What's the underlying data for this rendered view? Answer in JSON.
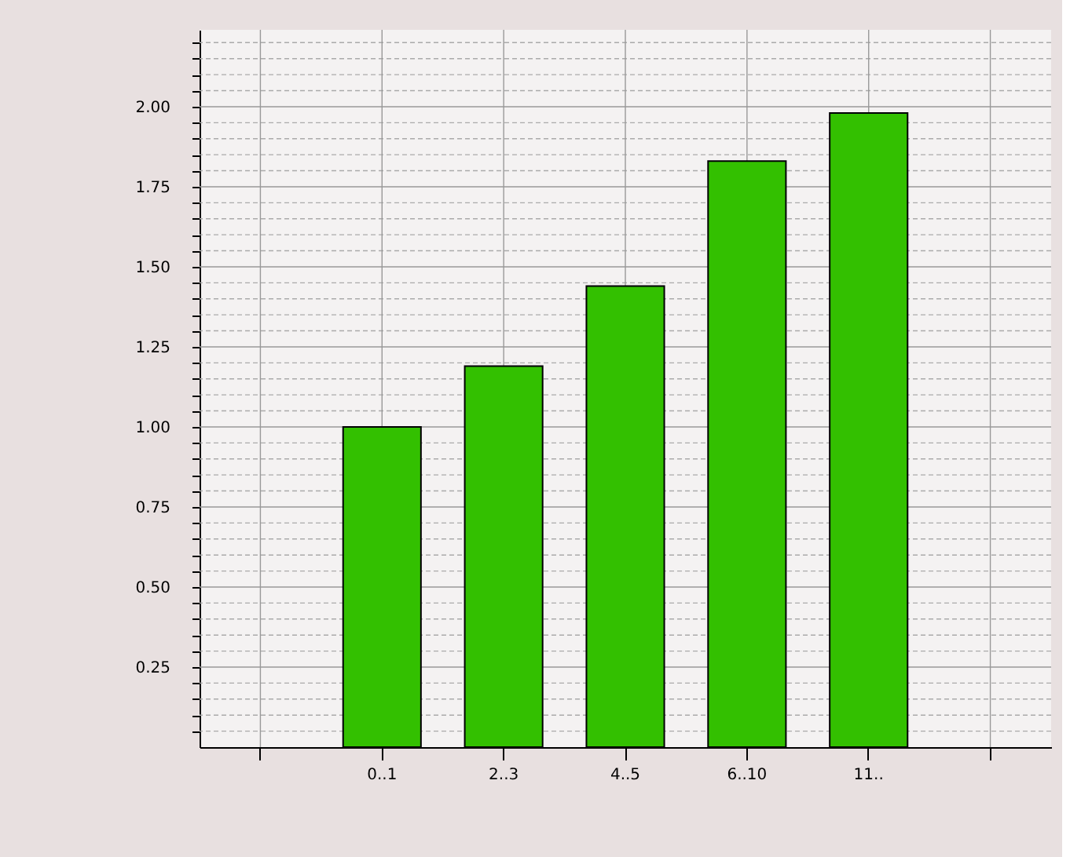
{
  "chart_data": {
    "type": "bar",
    "categories": [
      null,
      "0..1",
      "2..3",
      "4..5",
      "6..10",
      "11..",
      null
    ],
    "values": [
      null,
      1.0,
      1.19,
      1.44,
      1.83,
      1.98,
      null
    ],
    "color": "#33c000",
    "ylim": [
      0,
      2.24
    ],
    "yticks": [
      {
        "value": 0.05,
        "label": null
      },
      {
        "value": 0.1,
        "label": null
      },
      {
        "value": 0.15,
        "label": null
      },
      {
        "value": 0.2,
        "label": null
      },
      {
        "value": 0.25,
        "label": "0.25"
      },
      {
        "value": 0.3,
        "label": null
      },
      {
        "value": 0.35,
        "label": null
      },
      {
        "value": 0.4,
        "label": null
      },
      {
        "value": 0.45,
        "label": null
      },
      {
        "value": 0.5,
        "label": "0.50"
      },
      {
        "value": 0.55,
        "label": null
      },
      {
        "value": 0.6,
        "label": null
      },
      {
        "value": 0.65,
        "label": null
      },
      {
        "value": 0.7,
        "label": null
      },
      {
        "value": 0.75,
        "label": "0.75"
      },
      {
        "value": 0.8,
        "label": null
      },
      {
        "value": 0.85,
        "label": null
      },
      {
        "value": 0.9,
        "label": null
      },
      {
        "value": 0.95,
        "label": null
      },
      {
        "value": 1,
        "label": "1.00"
      },
      {
        "value": 1.05,
        "label": null
      },
      {
        "value": 1.1,
        "label": null
      },
      {
        "value": 1.15,
        "label": null
      },
      {
        "value": 1.2,
        "label": null
      },
      {
        "value": 1.25,
        "label": "1.25"
      },
      {
        "value": 1.3,
        "label": null
      },
      {
        "value": 1.35,
        "label": null
      },
      {
        "value": 1.4,
        "label": null
      },
      {
        "value": 1.45,
        "label": null
      },
      {
        "value": 1.5,
        "label": "1.50"
      },
      {
        "value": 1.55,
        "label": null
      },
      {
        "value": 1.6,
        "label": null
      },
      {
        "value": 1.65,
        "label": null
      },
      {
        "value": 1.7,
        "label": null
      },
      {
        "value": 1.75,
        "label": "1.75"
      },
      {
        "value": 1.8,
        "label": null
      },
      {
        "value": 1.85,
        "label": null
      },
      {
        "value": 1.9,
        "label": null
      },
      {
        "value": 1.95,
        "label": null
      },
      {
        "value": 2,
        "label": "2.00"
      },
      {
        "value": 2.05,
        "label": null
      },
      {
        "value": 2.1,
        "label": null
      },
      {
        "value": 2.15,
        "label": null
      },
      {
        "value": 2.2,
        "label": null
      }
    ],
    "grid": true
  }
}
